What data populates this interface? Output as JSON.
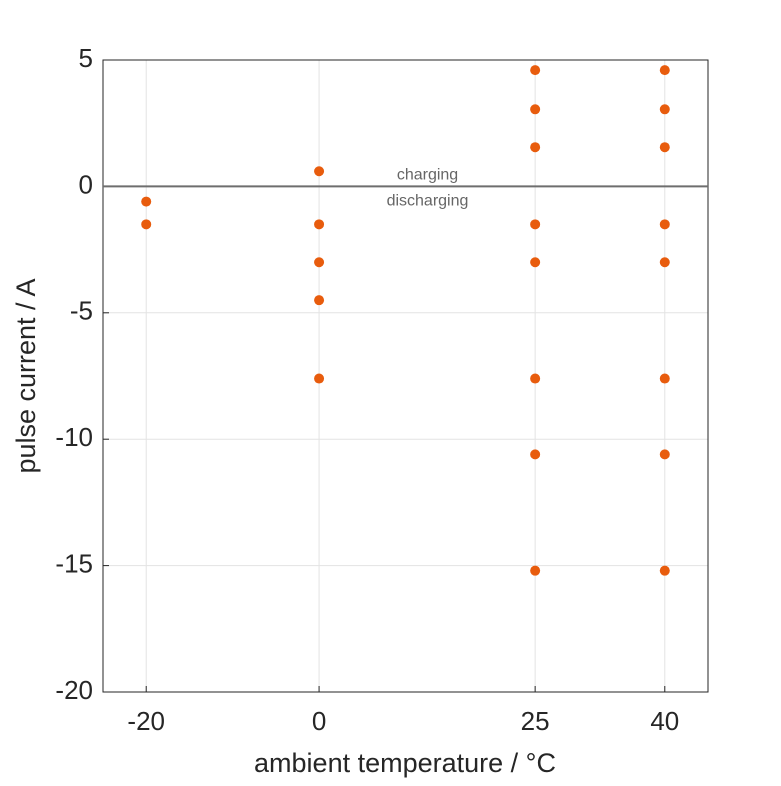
{
  "chart_data": {
    "type": "scatter",
    "x_label": "ambient temperature / °C",
    "y_label": "pulse current / A",
    "annotations": [
      "charging",
      "discharging"
    ],
    "reference_line": 0,
    "series": [
      {
        "color": "#e85c0d",
        "x": [
          -20,
          -20,
          0,
          0,
          0,
          0,
          0,
          25,
          25,
          25,
          25,
          25,
          25,
          25,
          25,
          40,
          40,
          40,
          40,
          40,
          40,
          40,
          40
        ],
        "values": [
          -0.6,
          -1.5,
          0.6,
          -1.5,
          -3,
          -4.5,
          -7.6,
          4.6,
          3.05,
          1.55,
          -1.5,
          -3,
          -7.6,
          -10.6,
          -15.2,
          4.6,
          3.05,
          1.55,
          -1.5,
          -3,
          -7.6,
          -10.6,
          -15.2
        ]
      }
    ],
    "xlim": [
      -25,
      45
    ],
    "xticks": [
      -20,
      0,
      25,
      40
    ],
    "ylim": [
      -20,
      5
    ],
    "yticks": [
      -20,
      -15,
      -10,
      -5,
      0,
      5
    ],
    "grid": true
  }
}
